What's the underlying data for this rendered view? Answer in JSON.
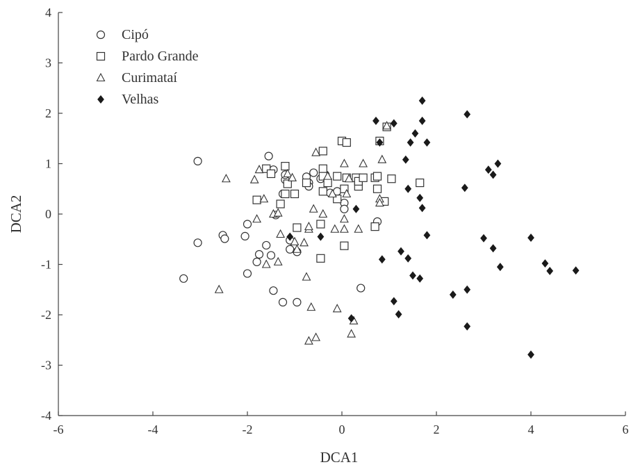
{
  "chart_data": {
    "type": "scatter",
    "title": "",
    "xlabel": "DCA1",
    "ylabel": "DCA2",
    "xlim": [
      -6,
      6
    ],
    "ylim": [
      -4,
      4
    ],
    "xticks": [
      "-6",
      "-4",
      "-2",
      "0",
      "2",
      "4",
      "6"
    ],
    "yticks": [
      "-4",
      "-3",
      "-2",
      "-1",
      "0",
      "1",
      "2",
      "3",
      "4"
    ],
    "grid": false,
    "legend_position": "top-left",
    "series": [
      {
        "name": "Cipó",
        "marker": "circle",
        "points": [
          [
            -3.05,
            1.05
          ],
          [
            -3.35,
            -1.28
          ],
          [
            -3.05,
            -0.57
          ],
          [
            -2.52,
            -0.42
          ],
          [
            -2.48,
            -0.49
          ],
          [
            -2.05,
            -0.44
          ],
          [
            -2.0,
            -0.2
          ],
          [
            -2.0,
            -1.18
          ],
          [
            -1.8,
            -0.95
          ],
          [
            -1.75,
            -0.8
          ],
          [
            -1.55,
            1.15
          ],
          [
            -1.45,
            0.88
          ],
          [
            -1.5,
            -0.82
          ],
          [
            -1.45,
            -1.52
          ],
          [
            -1.4,
            -0.02
          ],
          [
            -1.6,
            -0.62
          ],
          [
            -1.25,
            0.4
          ],
          [
            -1.2,
            0.68
          ],
          [
            -1.2,
            0.78
          ],
          [
            -1.25,
            -1.75
          ],
          [
            -1.1,
            -0.7
          ],
          [
            -1.1,
            -0.52
          ],
          [
            -0.95,
            -0.75
          ],
          [
            -0.95,
            -1.75
          ],
          [
            -0.75,
            0.74
          ],
          [
            -0.7,
            0.62
          ],
          [
            -0.7,
            0.55
          ],
          [
            -0.6,
            0.82
          ],
          [
            -0.45,
            0.7
          ],
          [
            -0.35,
            0.78
          ],
          [
            -0.25,
            0.42
          ],
          [
            -0.1,
            0.45
          ],
          [
            0.05,
            0.22
          ],
          [
            0.05,
            0.1
          ],
          [
            0.75,
            -0.15
          ],
          [
            0.4,
            -1.47
          ]
        ]
      },
      {
        "name": "Pardo Grande",
        "marker": "square",
        "points": [
          [
            -1.8,
            0.28
          ],
          [
            -1.6,
            0.9
          ],
          [
            -1.5,
            0.8
          ],
          [
            -1.2,
            0.95
          ],
          [
            -1.2,
            0.4
          ],
          [
            -1.15,
            0.6
          ],
          [
            -1.3,
            0.2
          ],
          [
            -1.0,
            0.4
          ],
          [
            -0.95,
            -0.27
          ],
          [
            -0.75,
            0.62
          ],
          [
            -0.4,
            1.25
          ],
          [
            -0.4,
            0.9
          ],
          [
            -0.4,
            0.75
          ],
          [
            -0.4,
            0.45
          ],
          [
            -0.3,
            0.62
          ],
          [
            -0.45,
            -0.2
          ],
          [
            -0.45,
            -0.88
          ],
          [
            -0.1,
            0.75
          ],
          [
            -0.1,
            0.3
          ],
          [
            0.0,
            1.45
          ],
          [
            0.1,
            1.42
          ],
          [
            0.05,
            0.5
          ],
          [
            0.1,
            0.72
          ],
          [
            0.05,
            -0.63
          ],
          [
            0.3,
            0.72
          ],
          [
            0.35,
            0.55
          ],
          [
            0.35,
            0.65
          ],
          [
            0.45,
            0.72
          ],
          [
            0.7,
            0.72
          ],
          [
            0.75,
            0.75
          ],
          [
            0.8,
            1.45
          ],
          [
            0.9,
            0.25
          ],
          [
            1.05,
            0.7
          ],
          [
            0.95,
            1.73
          ],
          [
            1.65,
            0.62
          ],
          [
            0.7,
            -0.25
          ],
          [
            0.75,
            0.5
          ]
        ]
      },
      {
        "name": "Curimataí",
        "marker": "triangle",
        "points": [
          [
            -2.45,
            0.7
          ],
          [
            -2.6,
            -1.5
          ],
          [
            -1.85,
            0.68
          ],
          [
            -1.75,
            0.88
          ],
          [
            -1.8,
            -0.1
          ],
          [
            -1.65,
            0.3
          ],
          [
            -1.6,
            -1.0
          ],
          [
            -1.45,
            0.0
          ],
          [
            -1.35,
            0.02
          ],
          [
            -1.35,
            -0.95
          ],
          [
            -1.3,
            -0.4
          ],
          [
            -1.15,
            0.8
          ],
          [
            -1.05,
            0.72
          ],
          [
            -1.0,
            -0.55
          ],
          [
            -0.95,
            -0.7
          ],
          [
            -0.8,
            -0.57
          ],
          [
            -0.7,
            -0.3
          ],
          [
            -0.75,
            -1.25
          ],
          [
            -0.7,
            -0.25
          ],
          [
            -0.65,
            -1.85
          ],
          [
            -0.55,
            -2.45
          ],
          [
            -0.7,
            -2.52
          ],
          [
            -0.55,
            1.22
          ],
          [
            -0.6,
            0.1
          ],
          [
            -0.4,
            0.0
          ],
          [
            -0.3,
            0.75
          ],
          [
            -0.2,
            0.4
          ],
          [
            -0.15,
            -0.3
          ],
          [
            -0.1,
            -1.88
          ],
          [
            0.05,
            -0.3
          ],
          [
            0.05,
            1.0
          ],
          [
            0.05,
            -0.1
          ],
          [
            0.1,
            0.4
          ],
          [
            0.15,
            0.7
          ],
          [
            0.2,
            -2.38
          ],
          [
            0.25,
            -2.12
          ],
          [
            0.35,
            -0.3
          ],
          [
            0.45,
            1.0
          ],
          [
            0.8,
            0.3
          ],
          [
            0.8,
            0.22
          ],
          [
            0.85,
            1.08
          ],
          [
            0.95,
            1.75
          ]
        ]
      },
      {
        "name": "Velhas",
        "marker": "diamond",
        "points": [
          [
            1.7,
            2.25
          ],
          [
            2.65,
            1.98
          ],
          [
            0.72,
            1.85
          ],
          [
            1.7,
            1.85
          ],
          [
            1.1,
            1.8
          ],
          [
            1.55,
            1.6
          ],
          [
            0.8,
            1.42
          ],
          [
            1.45,
            1.42
          ],
          [
            1.8,
            1.42
          ],
          [
            1.35,
            1.08
          ],
          [
            3.3,
            1.0
          ],
          [
            3.1,
            0.88
          ],
          [
            3.2,
            0.78
          ],
          [
            2.6,
            0.52
          ],
          [
            1.4,
            0.5
          ],
          [
            1.65,
            0.32
          ],
          [
            1.7,
            0.12
          ],
          [
            0.3,
            0.1
          ],
          [
            -1.1,
            -0.45
          ],
          [
            -0.45,
            -0.45
          ],
          [
            1.8,
            -0.42
          ],
          [
            3.0,
            -0.48
          ],
          [
            4.0,
            -0.47
          ],
          [
            3.2,
            -0.68
          ],
          [
            1.25,
            -0.74
          ],
          [
            0.85,
            -0.9
          ],
          [
            1.4,
            -0.88
          ],
          [
            3.35,
            -1.05
          ],
          [
            4.3,
            -0.98
          ],
          [
            4.4,
            -1.13
          ],
          [
            4.95,
            -1.12
          ],
          [
            1.5,
            -1.22
          ],
          [
            1.65,
            -1.28
          ],
          [
            2.65,
            -1.5
          ],
          [
            2.35,
            -1.6
          ],
          [
            1.1,
            -1.73
          ],
          [
            1.2,
            -1.99
          ],
          [
            0.2,
            -2.07
          ],
          [
            2.65,
            -2.23
          ],
          [
            4.0,
            -2.79
          ]
        ]
      }
    ]
  }
}
